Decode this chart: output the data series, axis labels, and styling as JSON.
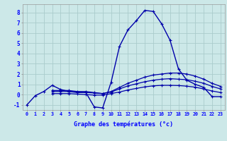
{
  "xlabel": "Graphe des températures (°c)",
  "background_color": "#cce8e8",
  "grid_color": "#aacccc",
  "line_color": "#0000aa",
  "hours": [
    0,
    1,
    2,
    3,
    4,
    5,
    6,
    7,
    8,
    9,
    10,
    11,
    12,
    13,
    14,
    15,
    16,
    17,
    18,
    19,
    20,
    21,
    22,
    23
  ],
  "line_main": [
    -1.0,
    -0.1,
    0.3,
    0.9,
    0.5,
    0.3,
    0.2,
    0.2,
    -1.2,
    -1.3,
    1.2,
    4.7,
    6.3,
    7.2,
    8.2,
    8.1,
    6.9,
    5.3,
    2.5,
    1.4,
    1.0,
    0.7,
    -0.2,
    -0.2
  ],
  "line_a": [
    null,
    null,
    null,
    0.4,
    0.4,
    0.4,
    0.3,
    0.3,
    0.2,
    0.1,
    0.3,
    0.7,
    1.1,
    1.4,
    1.7,
    1.9,
    2.0,
    2.1,
    2.1,
    2.0,
    1.8,
    1.5,
    1.1,
    0.8
  ],
  "line_b": [
    null,
    null,
    null,
    0.3,
    0.3,
    0.3,
    0.25,
    0.2,
    0.15,
    0.1,
    0.25,
    0.55,
    0.85,
    1.05,
    1.25,
    1.4,
    1.5,
    1.55,
    1.5,
    1.45,
    1.3,
    1.1,
    0.8,
    0.55
  ],
  "line_c": [
    null,
    null,
    null,
    0.1,
    0.1,
    0.1,
    0.05,
    0.0,
    -0.05,
    -0.05,
    0.1,
    0.25,
    0.45,
    0.6,
    0.75,
    0.85,
    0.9,
    0.9,
    0.88,
    0.82,
    0.72,
    0.55,
    0.35,
    0.2
  ],
  "ylim": [
    -1.5,
    8.8
  ],
  "yticks": [
    -1,
    0,
    1,
    2,
    3,
    4,
    5,
    6,
    7,
    8
  ],
  "xlim": [
    -0.5,
    23.5
  ]
}
